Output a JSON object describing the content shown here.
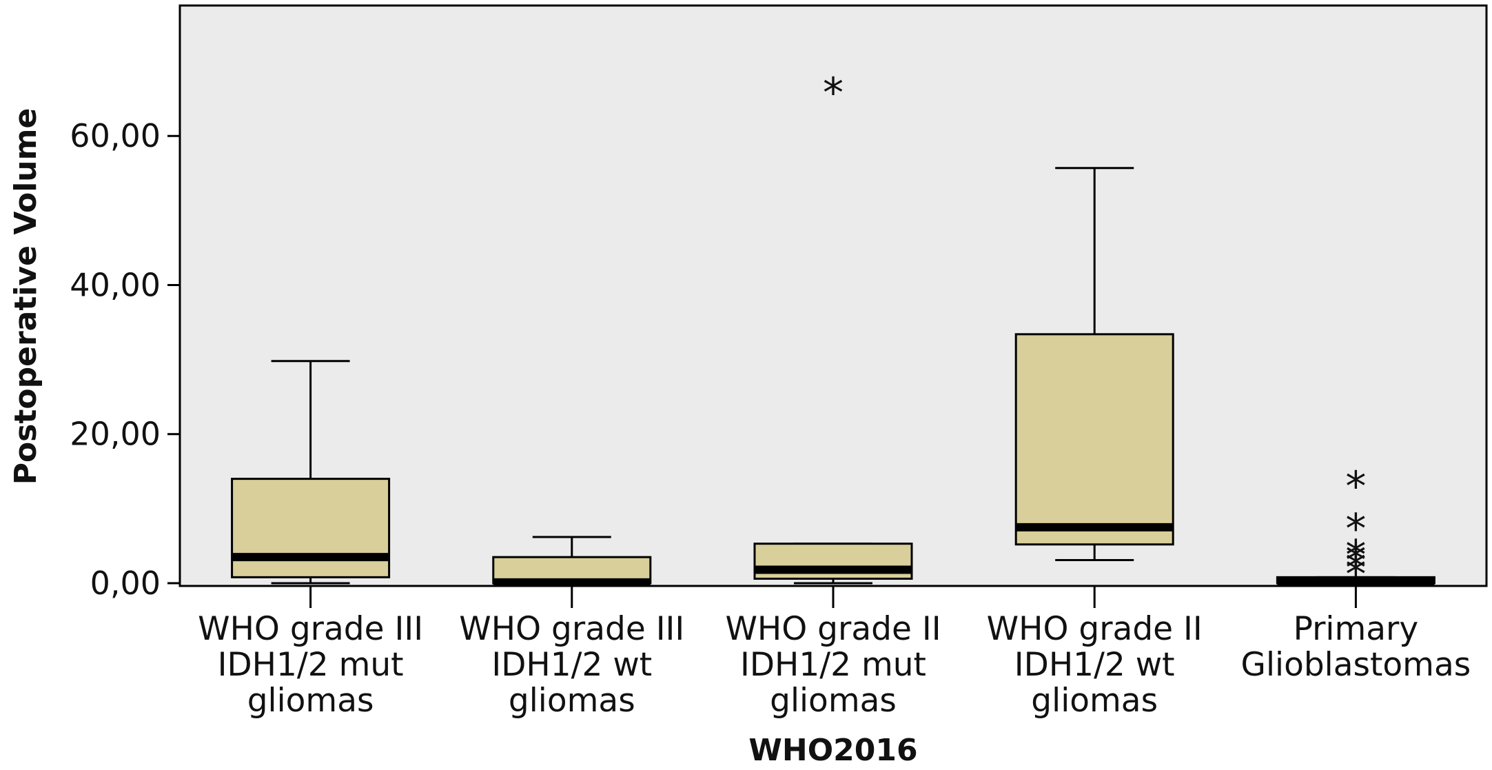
{
  "chart_data": {
    "type": "boxplot",
    "xlabel": "WHO2016",
    "ylabel": "Postoperative Volume",
    "ylim": [
      0,
      77.5
    ],
    "yticks": [
      0,
      20,
      40,
      60
    ],
    "ytick_labels": [
      "0,00",
      "20,00",
      "40,00",
      "60,00"
    ],
    "grid": false,
    "colors": {
      "box_fill": "#d8cf9a",
      "plot_bg": "#ebebeb",
      "line": "#000000"
    },
    "categories": [
      {
        "label_lines": [
          "WHO grade III",
          "IDH1/2 mut",
          "gliomas"
        ],
        "whisker_low": 0,
        "q1": 0.8,
        "median": 3.5,
        "q3": 14,
        "whisker_high": 29.8,
        "outliers": []
      },
      {
        "label_lines": [
          "WHO grade III",
          "IDH1/2 wt",
          "gliomas"
        ],
        "whisker_low": 0,
        "q1": 0,
        "median": 0.1,
        "q3": 3.5,
        "whisker_high": 6.2,
        "outliers": []
      },
      {
        "label_lines": [
          "WHO grade II",
          "IDH1/2 mut",
          "gliomas"
        ],
        "whisker_low": 0,
        "q1": 0.6,
        "median": 1.8,
        "q3": 5.3,
        "whisker_high": 5.3,
        "outliers": [
          66.3
        ]
      },
      {
        "label_lines": [
          "WHO grade II",
          "IDH1/2 wt",
          "gliomas"
        ],
        "whisker_low": 3.1,
        "q1": 5.2,
        "median": 7.5,
        "q3": 33.4,
        "whisker_high": 55.7,
        "outliers": []
      },
      {
        "label_lines": [
          "Primary",
          "Glioblastomas"
        ],
        "whisker_low": 0,
        "q1": 0,
        "median": 0.2,
        "q3": 0.8,
        "whisker_high": 0.8,
        "outliers": [
          13.5,
          7.8,
          4.3,
          3.6,
          2.6,
          1.7
        ]
      }
    ],
    "outlier_marker": "*"
  }
}
